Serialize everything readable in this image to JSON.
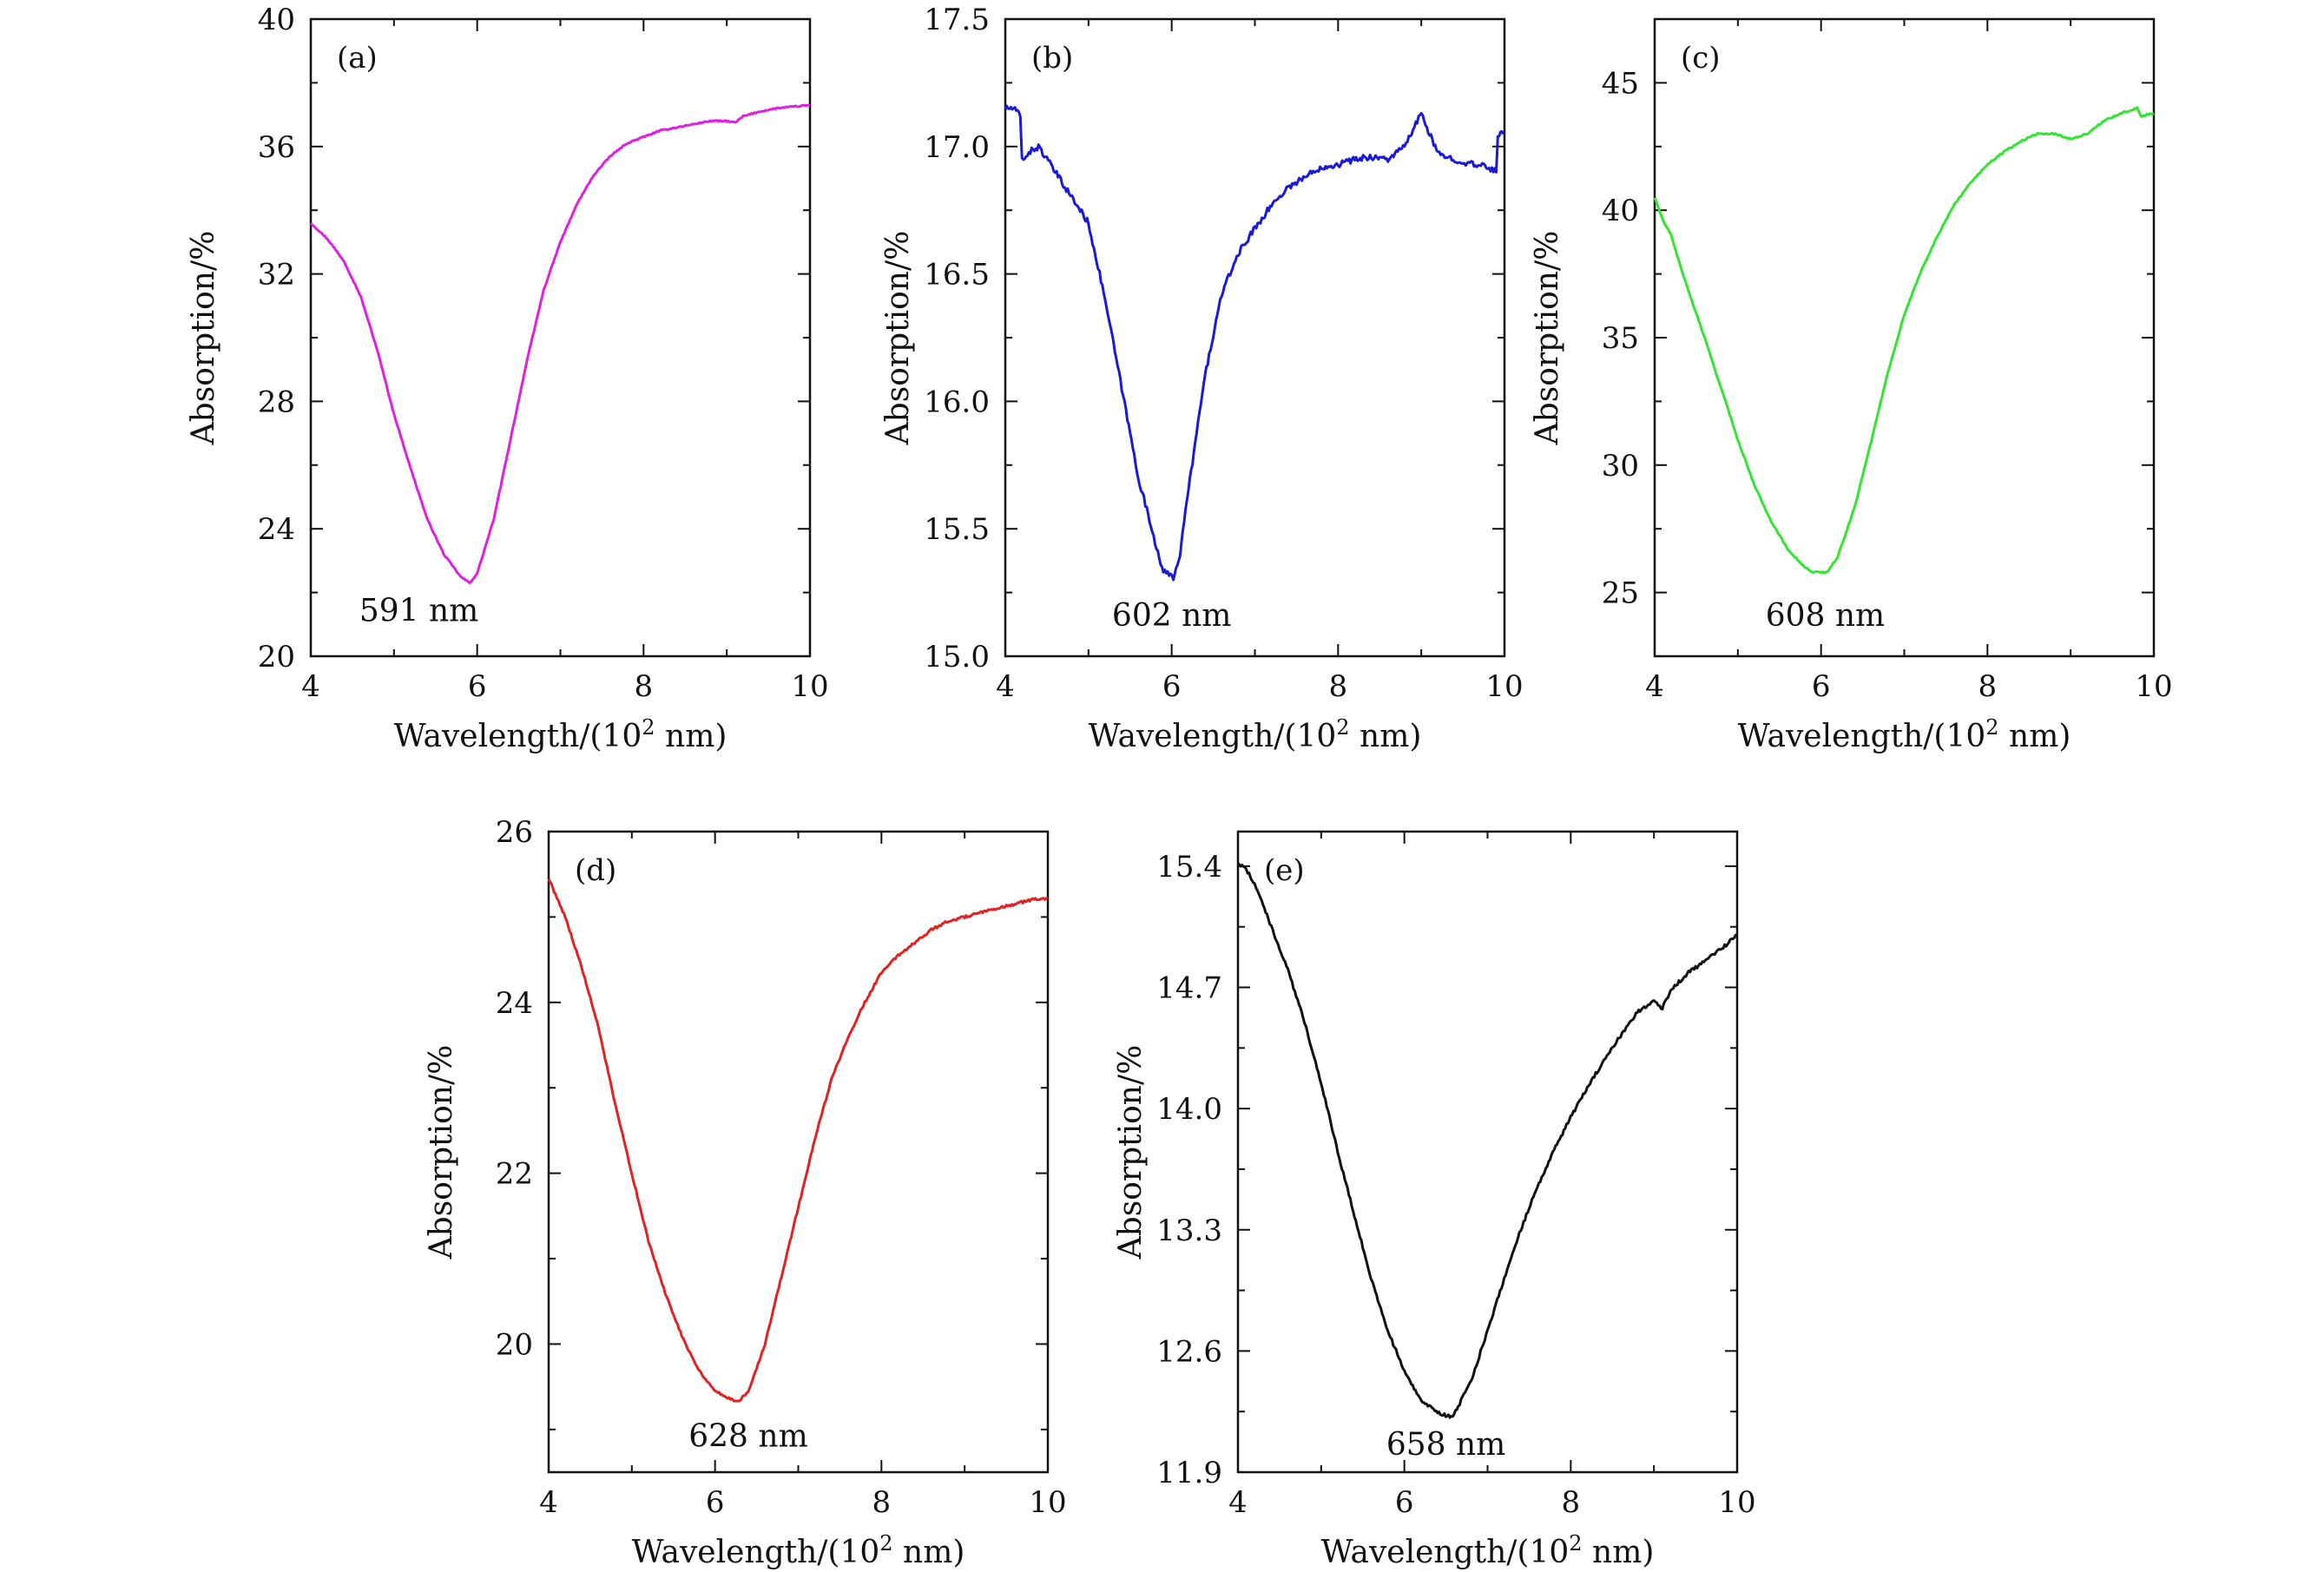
{
  "chart_data": [
    {
      "type": "line",
      "panel_label": "(a)",
      "xlabel": "Wavelength/(10² nm)",
      "ylabel": "Absorption/%",
      "xlim": [
        4,
        10
      ],
      "ylim": [
        20,
        40
      ],
      "xticks": [
        4,
        6,
        8,
        10
      ],
      "yticks": [
        20,
        24,
        28,
        32,
        36,
        40
      ],
      "ytick_labels": [
        "20",
        "24",
        "28",
        "32",
        "36",
        "40"
      ],
      "annotation": "591 nm",
      "annotation_at": [
        5.3,
        21.1
      ],
      "series": [
        {
          "color": "#e020e0",
          "noise": 0.02,
          "x": [
            4.0,
            4.2,
            4.4,
            4.6,
            4.8,
            5.0,
            5.2,
            5.4,
            5.6,
            5.8,
            5.91,
            6.0,
            6.2,
            6.4,
            6.6,
            6.8,
            7.0,
            7.2,
            7.4,
            7.6,
            7.8,
            8.0,
            8.2,
            8.4,
            8.6,
            8.8,
            9.0,
            9.1,
            9.2,
            9.4,
            9.6,
            9.8,
            10.0
          ],
          "y": [
            33.6,
            33.1,
            32.4,
            31.3,
            29.6,
            27.6,
            25.9,
            24.3,
            23.2,
            22.5,
            22.3,
            22.6,
            24.3,
            26.8,
            29.3,
            31.5,
            33.0,
            34.2,
            35.1,
            35.7,
            36.1,
            36.3,
            36.5,
            36.6,
            36.7,
            36.8,
            36.8,
            36.75,
            36.95,
            37.1,
            37.2,
            37.25,
            37.3
          ]
        }
      ]
    },
    {
      "type": "line",
      "panel_label": "(b)",
      "xlabel": "Wavelength/(10² nm)",
      "ylabel": "Absorption/%",
      "xlim": [
        4,
        10
      ],
      "ylim": [
        15.0,
        17.5
      ],
      "xticks": [
        4,
        6,
        8,
        10
      ],
      "yticks": [
        15.0,
        15.5,
        16.0,
        16.5,
        17.0,
        17.5
      ],
      "ytick_labels": [
        "15.0",
        "15.5",
        "16.0",
        "16.5",
        "17.0",
        "17.5"
      ],
      "annotation": "602 nm",
      "annotation_at": [
        6.0,
        15.12
      ],
      "series": [
        {
          "color": "#1a1ad6",
          "noise": 0.012,
          "x": [
            4.0,
            4.1,
            4.18,
            4.2,
            4.3,
            4.4,
            4.5,
            4.6,
            4.8,
            5.0,
            5.2,
            5.4,
            5.6,
            5.8,
            5.9,
            6.02,
            6.1,
            6.2,
            6.4,
            6.6,
            6.8,
            7.0,
            7.2,
            7.4,
            7.6,
            7.8,
            8.0,
            8.2,
            8.4,
            8.6,
            8.8,
            9.0,
            9.1,
            9.2,
            9.4,
            9.6,
            9.8,
            9.9,
            9.92,
            10.0
          ],
          "y": [
            17.15,
            17.15,
            17.12,
            16.95,
            16.98,
            17.0,
            16.95,
            16.9,
            16.8,
            16.7,
            16.4,
            16.05,
            15.7,
            15.45,
            15.33,
            15.31,
            15.4,
            15.65,
            16.1,
            16.42,
            16.58,
            16.68,
            16.77,
            16.84,
            16.88,
            16.92,
            16.93,
            16.95,
            16.96,
            16.95,
            17.0,
            17.13,
            17.05,
            16.97,
            16.95,
            16.93,
            16.92,
            16.9,
            17.05,
            17.05
          ]
        }
      ]
    },
    {
      "type": "line",
      "panel_label": "(c)",
      "xlabel": "Wavelength/(10² nm)",
      "ylabel": "Absorption/%",
      "xlim": [
        4,
        10
      ],
      "ylim": [
        22.5,
        47.5
      ],
      "xticks": [
        4,
        6,
        8,
        10
      ],
      "yticks": [
        25,
        30,
        35,
        40,
        45
      ],
      "ytick_labels": [
        "25",
        "30",
        "35",
        "40",
        "45"
      ],
      "annotation": "608 nm",
      "annotation_at": [
        6.05,
        23.7
      ],
      "series": [
        {
          "color": "#33e533",
          "noise": 0.03,
          "x": [
            4.0,
            4.1,
            4.2,
            4.3,
            4.4,
            4.6,
            4.8,
            5.0,
            5.2,
            5.4,
            5.6,
            5.8,
            5.9,
            6.08,
            6.2,
            6.4,
            6.6,
            6.8,
            7.0,
            7.2,
            7.4,
            7.6,
            7.8,
            8.0,
            8.2,
            8.4,
            8.6,
            8.8,
            9.0,
            9.2,
            9.4,
            9.6,
            9.8,
            9.85,
            10.0
          ],
          "y": [
            40.5,
            39.6,
            39.0,
            37.9,
            36.9,
            35.0,
            33.0,
            31.0,
            29.2,
            27.8,
            26.7,
            26.0,
            25.8,
            25.8,
            26.4,
            28.3,
            30.9,
            33.6,
            35.9,
            37.6,
            39.0,
            40.2,
            41.1,
            41.8,
            42.3,
            42.7,
            43.0,
            43.0,
            42.8,
            43.0,
            43.5,
            43.8,
            44.0,
            43.7,
            43.8
          ]
        }
      ]
    },
    {
      "type": "line",
      "panel_label": "(d)",
      "xlabel": "Wavelength/(10² nm)",
      "ylabel": "Absorption/%",
      "xlim": [
        4,
        10
      ],
      "ylim": [
        18.5,
        26
      ],
      "xticks": [
        4,
        6,
        8,
        10
      ],
      "yticks": [
        20,
        22,
        24,
        26
      ],
      "ytick_labels": [
        "20",
        "22",
        "24",
        "26"
      ],
      "annotation": "628 nm",
      "annotation_at": [
        6.4,
        18.8
      ],
      "series": [
        {
          "color": "#e02222",
          "noise": 0.015,
          "x": [
            4.0,
            4.2,
            4.4,
            4.6,
            4.8,
            5.0,
            5.2,
            5.4,
            5.6,
            5.8,
            6.0,
            6.2,
            6.28,
            6.4,
            6.6,
            6.8,
            7.0,
            7.2,
            7.4,
            7.6,
            7.8,
            8.0,
            8.2,
            8.4,
            8.6,
            8.8,
            9.0,
            9.2,
            9.4,
            9.6,
            9.8,
            10.0
          ],
          "y": [
            25.45,
            25.0,
            24.4,
            23.7,
            22.8,
            22.0,
            21.2,
            20.6,
            20.1,
            19.7,
            19.45,
            19.35,
            19.33,
            19.45,
            20.0,
            20.8,
            21.6,
            22.4,
            23.1,
            23.6,
            24.0,
            24.35,
            24.55,
            24.7,
            24.85,
            24.95,
            25.0,
            25.05,
            25.1,
            25.15,
            25.2,
            25.22
          ]
        }
      ]
    },
    {
      "type": "line",
      "panel_label": "(e)",
      "xlabel": "Wavelength/(10² nm)",
      "ylabel": "Absorption/%",
      "xlim": [
        4,
        10
      ],
      "ylim": [
        11.9,
        15.6
      ],
      "xticks": [
        4,
        6,
        8,
        10
      ],
      "yticks": [
        11.9,
        12.6,
        13.3,
        14.0,
        14.7,
        15.4
      ],
      "ytick_labels": [
        "11.9",
        "12.6",
        "13.3",
        "14.0",
        "14.7",
        "15.4"
      ],
      "annotation": "658 nm",
      "annotation_at": [
        6.5,
        12.0
      ],
      "series": [
        {
          "color": "#111111",
          "noise": 0.01,
          "x": [
            4.0,
            4.1,
            4.2,
            4.3,
            4.4,
            4.6,
            4.8,
            5.0,
            5.2,
            5.4,
            5.6,
            5.8,
            6.0,
            6.2,
            6.4,
            6.58,
            6.8,
            7.0,
            7.2,
            7.4,
            7.6,
            7.8,
            8.0,
            8.2,
            8.4,
            8.6,
            8.8,
            9.0,
            9.1,
            9.2,
            9.4,
            9.6,
            9.8,
            10.0
          ],
          "y": [
            15.42,
            15.38,
            15.3,
            15.18,
            15.05,
            14.8,
            14.5,
            14.15,
            13.75,
            13.38,
            13.02,
            12.72,
            12.48,
            12.32,
            12.24,
            12.22,
            12.42,
            12.72,
            13.02,
            13.3,
            13.55,
            13.76,
            13.95,
            14.12,
            14.28,
            14.42,
            14.56,
            14.62,
            14.58,
            14.68,
            14.78,
            14.85,
            14.92,
            15.0
          ]
        }
      ]
    }
  ]
}
